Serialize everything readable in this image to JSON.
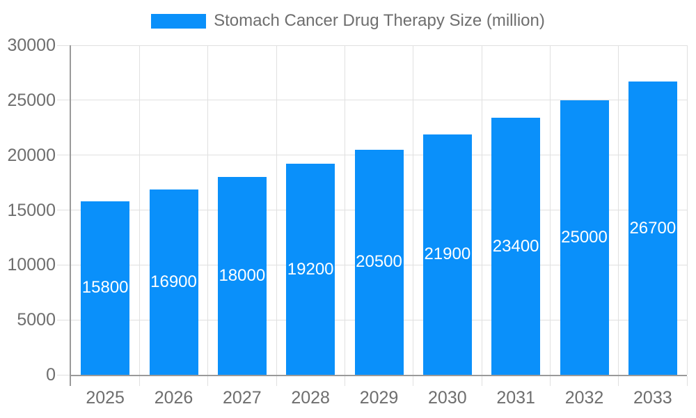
{
  "colors": {
    "bar": "#0a90fa",
    "axis_line": "#999999",
    "grid_line": "#e0e0e0",
    "axis_text": "#6e6e6e",
    "bar_label": "#ffffff",
    "background": "#ffffff"
  },
  "legend": {
    "label": "Stomach Cancer Drug Therapy Size (million)"
  },
  "chart_data": {
    "type": "bar",
    "title": "Stomach Cancer Drug Therapy Size (million)",
    "categories": [
      "2025",
      "2026",
      "2027",
      "2028",
      "2029",
      "2030",
      "2031",
      "2032",
      "2033"
    ],
    "values": [
      15800,
      16900,
      18000,
      19200,
      20500,
      21900,
      23400,
      25000,
      26700
    ],
    "xlabel": "",
    "ylabel": "",
    "ylim": [
      0,
      30000
    ],
    "yticks": [
      0,
      5000,
      10000,
      15000,
      20000,
      25000,
      30000
    ],
    "grid": true,
    "legend_position": "top-center",
    "value_labels_position": "inside-center"
  }
}
